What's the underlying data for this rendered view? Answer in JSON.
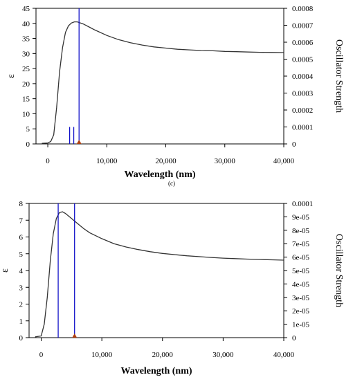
{
  "panel_label_between": "(c)",
  "colors": {
    "curve": "#333333",
    "stick": "#1010c8",
    "marker": "#b04010",
    "axis": "#000000"
  },
  "chart_data": [
    {
      "type": "line",
      "title": "",
      "xlabel": "Wavelength (nm)",
      "ylabel": "ε",
      "y2label": "Oscillator Strength",
      "xlim": [
        -2000,
        40000
      ],
      "ylim": [
        0,
        45
      ],
      "y2lim": [
        0,
        0.0008
      ],
      "x_ticks": [
        0,
        10000,
        20000,
        30000,
        40000
      ],
      "x_tick_labels": [
        "0",
        "10,000",
        "20,000",
        "30,000",
        "40,000"
      ],
      "y_ticks": [
        0,
        5,
        10,
        15,
        20,
        25,
        30,
        35,
        40,
        45
      ],
      "y_tick_labels": [
        "0",
        "5",
        "10",
        "15",
        "20",
        "25",
        "30",
        "35",
        "40",
        "45"
      ],
      "y2_ticks": [
        0,
        0.0001,
        0.0002,
        0.0003,
        0.0004,
        0.0005,
        0.0006,
        0.0007,
        0.0008
      ],
      "y2_tick_labels": [
        "0",
        "0.0001",
        "0.0002",
        "0.0003",
        "0.0004",
        "0.0005",
        "0.0006",
        "0.0007",
        "0.0008"
      ],
      "grid": false,
      "series": [
        {
          "x": [
            -1000,
            0,
            500,
            1000,
            1500,
            2000,
            2500,
            3000,
            3500,
            4000,
            4500,
            5000,
            6000,
            7000,
            8000,
            10000,
            12000,
            14000,
            16000,
            18000,
            20000,
            22000,
            24000,
            26000,
            28000,
            30000,
            32000,
            34000,
            36000,
            38000,
            40000
          ],
          "y": [
            0.2,
            0.3,
            0.8,
            3,
            12,
            24,
            32,
            37,
            39.2,
            40.1,
            40.5,
            40.5,
            39.8,
            38.8,
            37.8,
            36,
            34.6,
            33.6,
            32.8,
            32.2,
            31.8,
            31.4,
            31.2,
            31.0,
            30.9,
            30.7,
            30.6,
            30.5,
            30.4,
            30.35,
            30.3
          ]
        }
      ],
      "sticks": [
        {
          "x": 3700,
          "f": 0.0001
        },
        {
          "x": 4400,
          "f": 0.0001
        },
        {
          "x": 5300,
          "f": 0.0008
        }
      ],
      "marker_x": 5300
    },
    {
      "type": "line",
      "title": "",
      "xlabel": "Wavelength (nm)",
      "ylabel": "ε",
      "y2label": "Oscillator Strength",
      "xlim": [
        -2000,
        40000
      ],
      "ylim": [
        0,
        8
      ],
      "y2lim": [
        0,
        0.0001
      ],
      "x_ticks": [
        0,
        10000,
        20000,
        30000,
        40000
      ],
      "x_tick_labels": [
        "0",
        "10,000",
        "20,000",
        "30,000",
        "40,000"
      ],
      "y_ticks": [
        0,
        1,
        2,
        3,
        4,
        5,
        6,
        7,
        8
      ],
      "y_tick_labels": [
        "0",
        "1",
        "2",
        "3",
        "4",
        "5",
        "6",
        "7",
        "8"
      ],
      "y2_ticks": [
        0,
        1e-05,
        2e-05,
        3e-05,
        4e-05,
        5e-05,
        6e-05,
        7e-05,
        8e-05,
        9e-05,
        0.0001
      ],
      "y2_tick_labels": [
        "0",
        "1e-05",
        "2e-05",
        "3e-05",
        "4e-05",
        "5e-05",
        "6e-05",
        "7e-05",
        "8e-05",
        "9e-05",
        "0.0001"
      ],
      "grid": false,
      "series": [
        {
          "x": [
            -1000,
            0,
            500,
            1000,
            1500,
            2000,
            2500,
            3000,
            3500,
            4000,
            5000,
            6000,
            7000,
            8000,
            10000,
            12000,
            14000,
            16000,
            18000,
            20000,
            22000,
            24000,
            26000,
            28000,
            30000,
            32000,
            34000,
            36000,
            38000,
            40000
          ],
          "y": [
            0.05,
            0.1,
            0.8,
            2.4,
            4.6,
            6.2,
            7.1,
            7.45,
            7.5,
            7.4,
            7.1,
            6.8,
            6.5,
            6.25,
            5.9,
            5.6,
            5.4,
            5.25,
            5.12,
            5.02,
            4.95,
            4.88,
            4.83,
            4.78,
            4.74,
            4.71,
            4.68,
            4.66,
            4.64,
            4.62
          ]
        }
      ],
      "sticks": [
        {
          "x": 2800,
          "f": 0.0001
        },
        {
          "x": 5500,
          "f": 0.0001
        }
      ],
      "marker_x": 5500
    }
  ]
}
